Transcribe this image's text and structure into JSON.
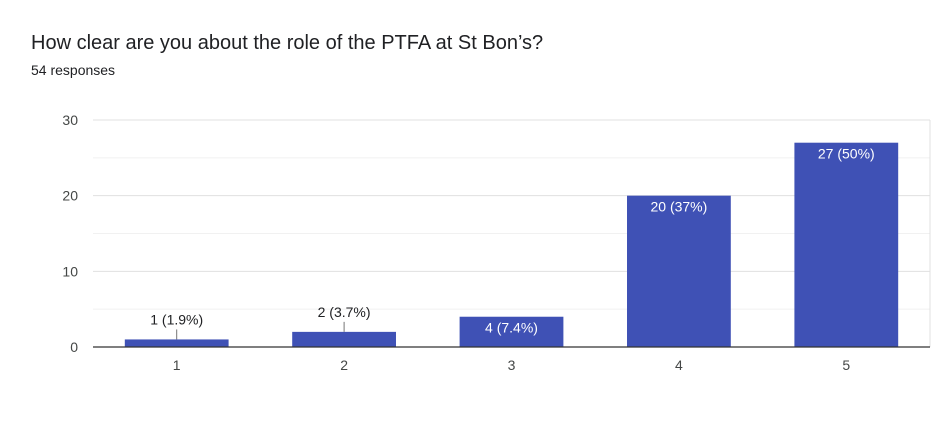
{
  "question": {
    "title": "How clear are you about the role of the PTFA at St Bon’s?",
    "responses": "54 responses"
  },
  "chart_data": {
    "type": "bar",
    "categories": [
      "1",
      "2",
      "3",
      "4",
      "5"
    ],
    "values": [
      1,
      2,
      4,
      20,
      27
    ],
    "data_labels": [
      "1 (1.9%)",
      "2 (3.7%)",
      "4 (7.4%)",
      "20 (37%)",
      "27 (50%)"
    ],
    "ylim": [
      0,
      30
    ],
    "yticks": [
      0,
      10,
      20,
      30
    ],
    "grid": true,
    "legend": "none",
    "bar_color": "#3f51b5",
    "inside_label_color": "#ffffff",
    "outside_label_color": "#202124"
  }
}
